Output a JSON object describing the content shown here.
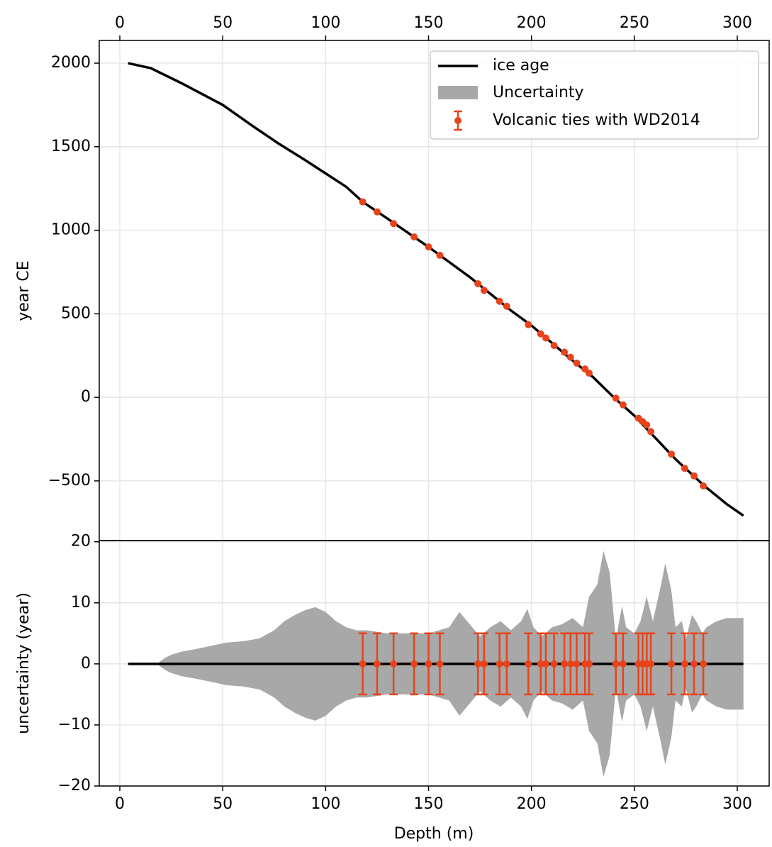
{
  "chart_data": [
    {
      "type": "line",
      "ylabel": "year CE",
      "xlim": [
        -10,
        315.5
      ],
      "ylim": [
        -857,
        2136
      ],
      "xticks": [
        0,
        50,
        100,
        150,
        200,
        250,
        300
      ],
      "yticks": [
        {
          "value": -500,
          "label": "−500"
        },
        0,
        500,
        1000,
        1500,
        2000
      ],
      "grid": true,
      "legend": "upper right",
      "series": [
        {
          "name": "ice age",
          "color": "#000000",
          "x": [
            4,
            15,
            30,
            50,
            65,
            77,
            90,
            100,
            110,
            118,
            130,
            150,
            170,
            190,
            200,
            220,
            230,
            240,
            250,
            260,
            270,
            284,
            295,
            303
          ],
          "values": [
            2000,
            1970,
            1880,
            1750,
            1620,
            1520,
            1420,
            1340,
            1260,
            1170,
            1070,
            900,
            720,
            520,
            430,
            220,
            120,
            0,
            -110,
            -240,
            -370,
            -530,
            -640,
            -708
          ]
        },
        {
          "name": "Volcanic ties with WD2014",
          "color": "#e8431b",
          "x": [
            118,
            125,
            133,
            143,
            150,
            155.5,
            174,
            177,
            184.5,
            188,
            198.5,
            204.5,
            207,
            211,
            216,
            219,
            222,
            226,
            228,
            241,
            244.5,
            252,
            254,
            256,
            258,
            268,
            274.5,
            279,
            283.5
          ],
          "values": [
            1170,
            1110,
            1040,
            960,
            900,
            850,
            680,
            640,
            575,
            545,
            435,
            380,
            355,
            310,
            270,
            240,
            205,
            170,
            145,
            -5,
            -45,
            -125,
            -145,
            -165,
            -205,
            -340,
            -425,
            -470,
            -530
          ]
        }
      ]
    },
    {
      "type": "band",
      "xlabel": "Depth (m)",
      "ylabel": "uncertainty (year)",
      "xlim": [
        -10,
        315.5
      ],
      "ylim": [
        -20,
        20.2
      ],
      "xticks": [
        0,
        50,
        100,
        150,
        200,
        250,
        300
      ],
      "yticks": [
        {
          "value": -20,
          "label": "−20"
        },
        {
          "value": -10,
          "label": "−10"
        },
        0,
        10,
        20
      ],
      "grid": true,
      "series": [
        {
          "name": "Uncertainty",
          "color": "#a8a8a8",
          "x": [
            4,
            18,
            20,
            22,
            25,
            30,
            38,
            45,
            52,
            60,
            68,
            75,
            80,
            85,
            90,
            95,
            100,
            105,
            110,
            115,
            120,
            130,
            140,
            150,
            155,
            160,
            165,
            170,
            175,
            180,
            185,
            190,
            195,
            198,
            201,
            205,
            210,
            215,
            220,
            225,
            228,
            232,
            235,
            238,
            241,
            244,
            246,
            250,
            253,
            256,
            259,
            263,
            265,
            268,
            270,
            273,
            275,
            278,
            280,
            283,
            285,
            290,
            295,
            303
          ],
          "values": [
            0,
            0,
            0.5,
            1,
            1.5,
            2,
            2.5,
            3,
            3.5,
            3.7,
            4.2,
            5.5,
            7,
            8,
            8.8,
            9.3,
            8.5,
            7,
            6,
            5.5,
            5.5,
            5,
            5,
            5,
            5.5,
            6,
            8.5,
            6.5,
            4.5,
            6,
            7,
            5.5,
            7,
            9,
            6,
            4.5,
            6,
            6.5,
            7.5,
            6,
            11,
            13,
            18.5,
            15,
            4,
            9.5,
            6,
            5,
            7,
            11,
            7,
            13,
            16.5,
            12,
            6,
            7,
            4,
            8,
            7,
            5,
            6,
            7,
            7.5,
            7.5
          ]
        },
        {
          "color": "#000000",
          "x": [
            4,
            303
          ],
          "values": [
            0,
            0
          ]
        },
        {
          "color": "#e8431b",
          "x": [
            118,
            125,
            133,
            143,
            150,
            155.5,
            174,
            177,
            184.5,
            188,
            198.5,
            204.5,
            207,
            211,
            216,
            219,
            222,
            226,
            228,
            241,
            244.5,
            252,
            254,
            256,
            258,
            268,
            274.5,
            279,
            283.5
          ],
          "values": [
            0,
            0,
            0,
            0,
            0,
            0,
            0,
            0,
            0,
            0,
            0,
            0,
            0,
            0,
            0,
            0,
            0,
            0,
            0,
            0,
            0,
            0,
            0,
            0,
            0,
            0,
            0,
            0,
            0
          ],
          "errors": [
            5,
            5,
            5,
            5,
            5,
            5,
            5,
            5,
            5,
            5,
            5,
            5,
            5,
            5,
            5,
            5,
            5,
            5,
            5,
            5,
            5,
            5,
            5,
            5,
            5,
            5,
            5,
            5,
            5
          ]
        }
      ]
    }
  ]
}
